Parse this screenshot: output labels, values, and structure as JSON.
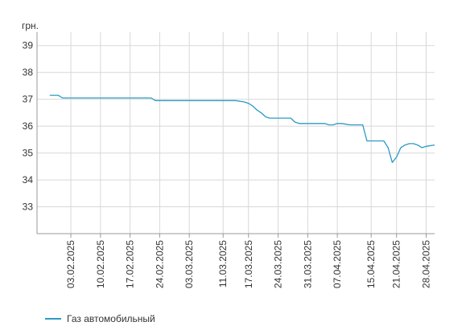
{
  "chart_data": {
    "type": "line",
    "ylabel": "грн.",
    "ylim": [
      32,
      39.5
    ],
    "y_ticks": [
      33,
      34,
      35,
      36,
      37,
      38,
      39
    ],
    "x_tick_labels": [
      "03.02.2025",
      "10.02.2025",
      "17.02.2025",
      "24.02.2025",
      "03.03.2025",
      "11.03.2025",
      "17.03.2025",
      "24.03.2025",
      "31.03.2025",
      "07.04.2025",
      "15.04.2025",
      "21.04.2025",
      "28.04.2025"
    ],
    "grid": true,
    "legend_position": "bottom-left",
    "series": [
      {
        "name": "Газ автомобильный",
        "color": "#2a9bc4",
        "x": [
          "2025-01-29",
          "2025-01-30",
          "2025-01-31",
          "2025-02-01",
          "2025-02-03",
          "2025-02-10",
          "2025-02-17",
          "2025-02-22",
          "2025-02-23",
          "2025-02-24",
          "2025-03-03",
          "2025-03-11",
          "2025-03-14",
          "2025-03-16",
          "2025-03-17",
          "2025-03-18",
          "2025-03-19",
          "2025-03-20",
          "2025-03-21",
          "2025-03-22",
          "2025-03-23",
          "2025-03-24",
          "2025-03-25",
          "2025-03-26",
          "2025-03-27",
          "2025-03-28",
          "2025-03-29",
          "2025-03-30",
          "2025-03-31",
          "2025-04-02",
          "2025-04-04",
          "2025-04-05",
          "2025-04-06",
          "2025-04-07",
          "2025-04-08",
          "2025-04-10",
          "2025-04-11",
          "2025-04-13",
          "2025-04-14",
          "2025-04-15",
          "2025-04-17",
          "2025-04-18",
          "2025-04-19",
          "2025-04-20",
          "2025-04-21",
          "2025-04-22",
          "2025-04-23",
          "2025-04-24",
          "2025-04-25",
          "2025-04-26",
          "2025-04-27",
          "2025-04-28",
          "2025-04-30"
        ],
        "values": [
          37.15,
          37.15,
          37.15,
          37.05,
          37.05,
          37.05,
          37.05,
          37.05,
          36.95,
          36.95,
          36.95,
          36.95,
          36.95,
          36.9,
          36.85,
          36.75,
          36.6,
          36.5,
          36.35,
          36.3,
          36.3,
          36.3,
          36.3,
          36.3,
          36.3,
          36.15,
          36.1,
          36.1,
          36.1,
          36.1,
          36.1,
          36.05,
          36.05,
          36.1,
          36.1,
          36.05,
          36.05,
          36.05,
          35.45,
          35.45,
          35.45,
          35.45,
          35.2,
          34.65,
          34.85,
          35.2,
          35.3,
          35.35,
          35.35,
          35.3,
          35.2,
          35.25,
          35.3
        ]
      }
    ]
  }
}
